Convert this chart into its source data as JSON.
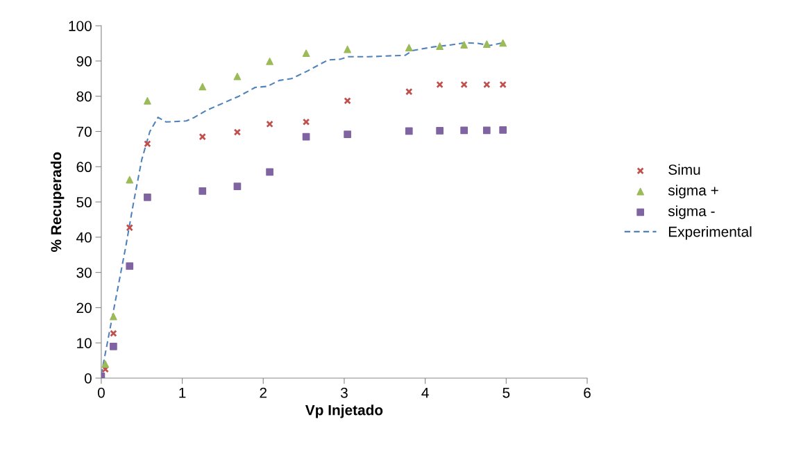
{
  "chart_data": {
    "type": "scatter",
    "xlabel": "Vp Injetado",
    "ylabel": "% Recuperado",
    "xlim": [
      0,
      6
    ],
    "xticks": [
      0,
      1,
      2,
      3,
      4,
      5,
      6
    ],
    "ylim": [
      0,
      100
    ],
    "yticks": [
      0,
      10,
      20,
      30,
      40,
      50,
      60,
      70,
      80,
      90,
      100
    ],
    "grid": false,
    "legend": "right",
    "series": [
      {
        "name": "Simu",
        "color": "#c0504d",
        "marker": "cross",
        "x": [
          0.05,
          0.15,
          0.35,
          0.57,
          1.25,
          1.68,
          2.08,
          2.53,
          3.04,
          3.8,
          4.18,
          4.48,
          4.76,
          4.96
        ],
        "values": [
          2.5,
          12.7,
          42.7,
          66.5,
          68.5,
          69.8,
          72.1,
          72.7,
          78.7,
          81.3,
          83.3,
          83.3,
          83.3,
          83.3
        ]
      },
      {
        "name": "sigma +",
        "color": "#9bbb59",
        "marker": "triangle",
        "x": [
          0.05,
          0.15,
          0.35,
          0.57,
          1.25,
          1.68,
          2.08,
          2.53,
          3.04,
          3.8,
          4.18,
          4.48,
          4.76,
          4.96
        ],
        "values": [
          4,
          17.5,
          56.3,
          78.7,
          82.7,
          85.6,
          89.9,
          92.2,
          93.3,
          93.8,
          94.2,
          94.6,
          94.8,
          95.1
        ]
      },
      {
        "name": "sigma -",
        "color": "#8064a2",
        "marker": "square",
        "x": [
          0,
          0.15,
          0.35,
          0.57,
          1.25,
          1.68,
          2.08,
          2.53,
          3.04,
          3.8,
          4.18,
          4.48,
          4.76,
          4.96
        ],
        "values": [
          0.5,
          9,
          31.8,
          51.3,
          53.1,
          54.4,
          58.5,
          68.5,
          69.2,
          70.1,
          70.2,
          70.3,
          70.3,
          70.4
        ]
      },
      {
        "name": "Experimental",
        "type": "line",
        "color": "#4f81bd",
        "line_style": "dashed",
        "marker": "none",
        "x": [
          0,
          0.1,
          0.2,
          0.3,
          0.4,
          0.5,
          0.6,
          0.7,
          0.8,
          0.9,
          1.05,
          1.15,
          1.3,
          1.5,
          1.7,
          1.9,
          2.05,
          2.2,
          2.35,
          2.55,
          2.8,
          2.95,
          3.05,
          3.3,
          3.6,
          3.75,
          3.85,
          4.1,
          4.3,
          4.5,
          4.65,
          4.8,
          4.96
        ],
        "values": [
          1,
          13,
          25,
          37,
          50,
          62,
          70,
          74,
          72.7,
          72.8,
          73,
          74,
          76,
          78,
          80,
          82.5,
          82.8,
          84.5,
          85,
          87.2,
          90.3,
          90.5,
          91.2,
          91.2,
          91.5,
          91.6,
          93,
          94,
          94.5,
          95.2,
          95,
          94.4,
          95.2
        ]
      }
    ]
  }
}
